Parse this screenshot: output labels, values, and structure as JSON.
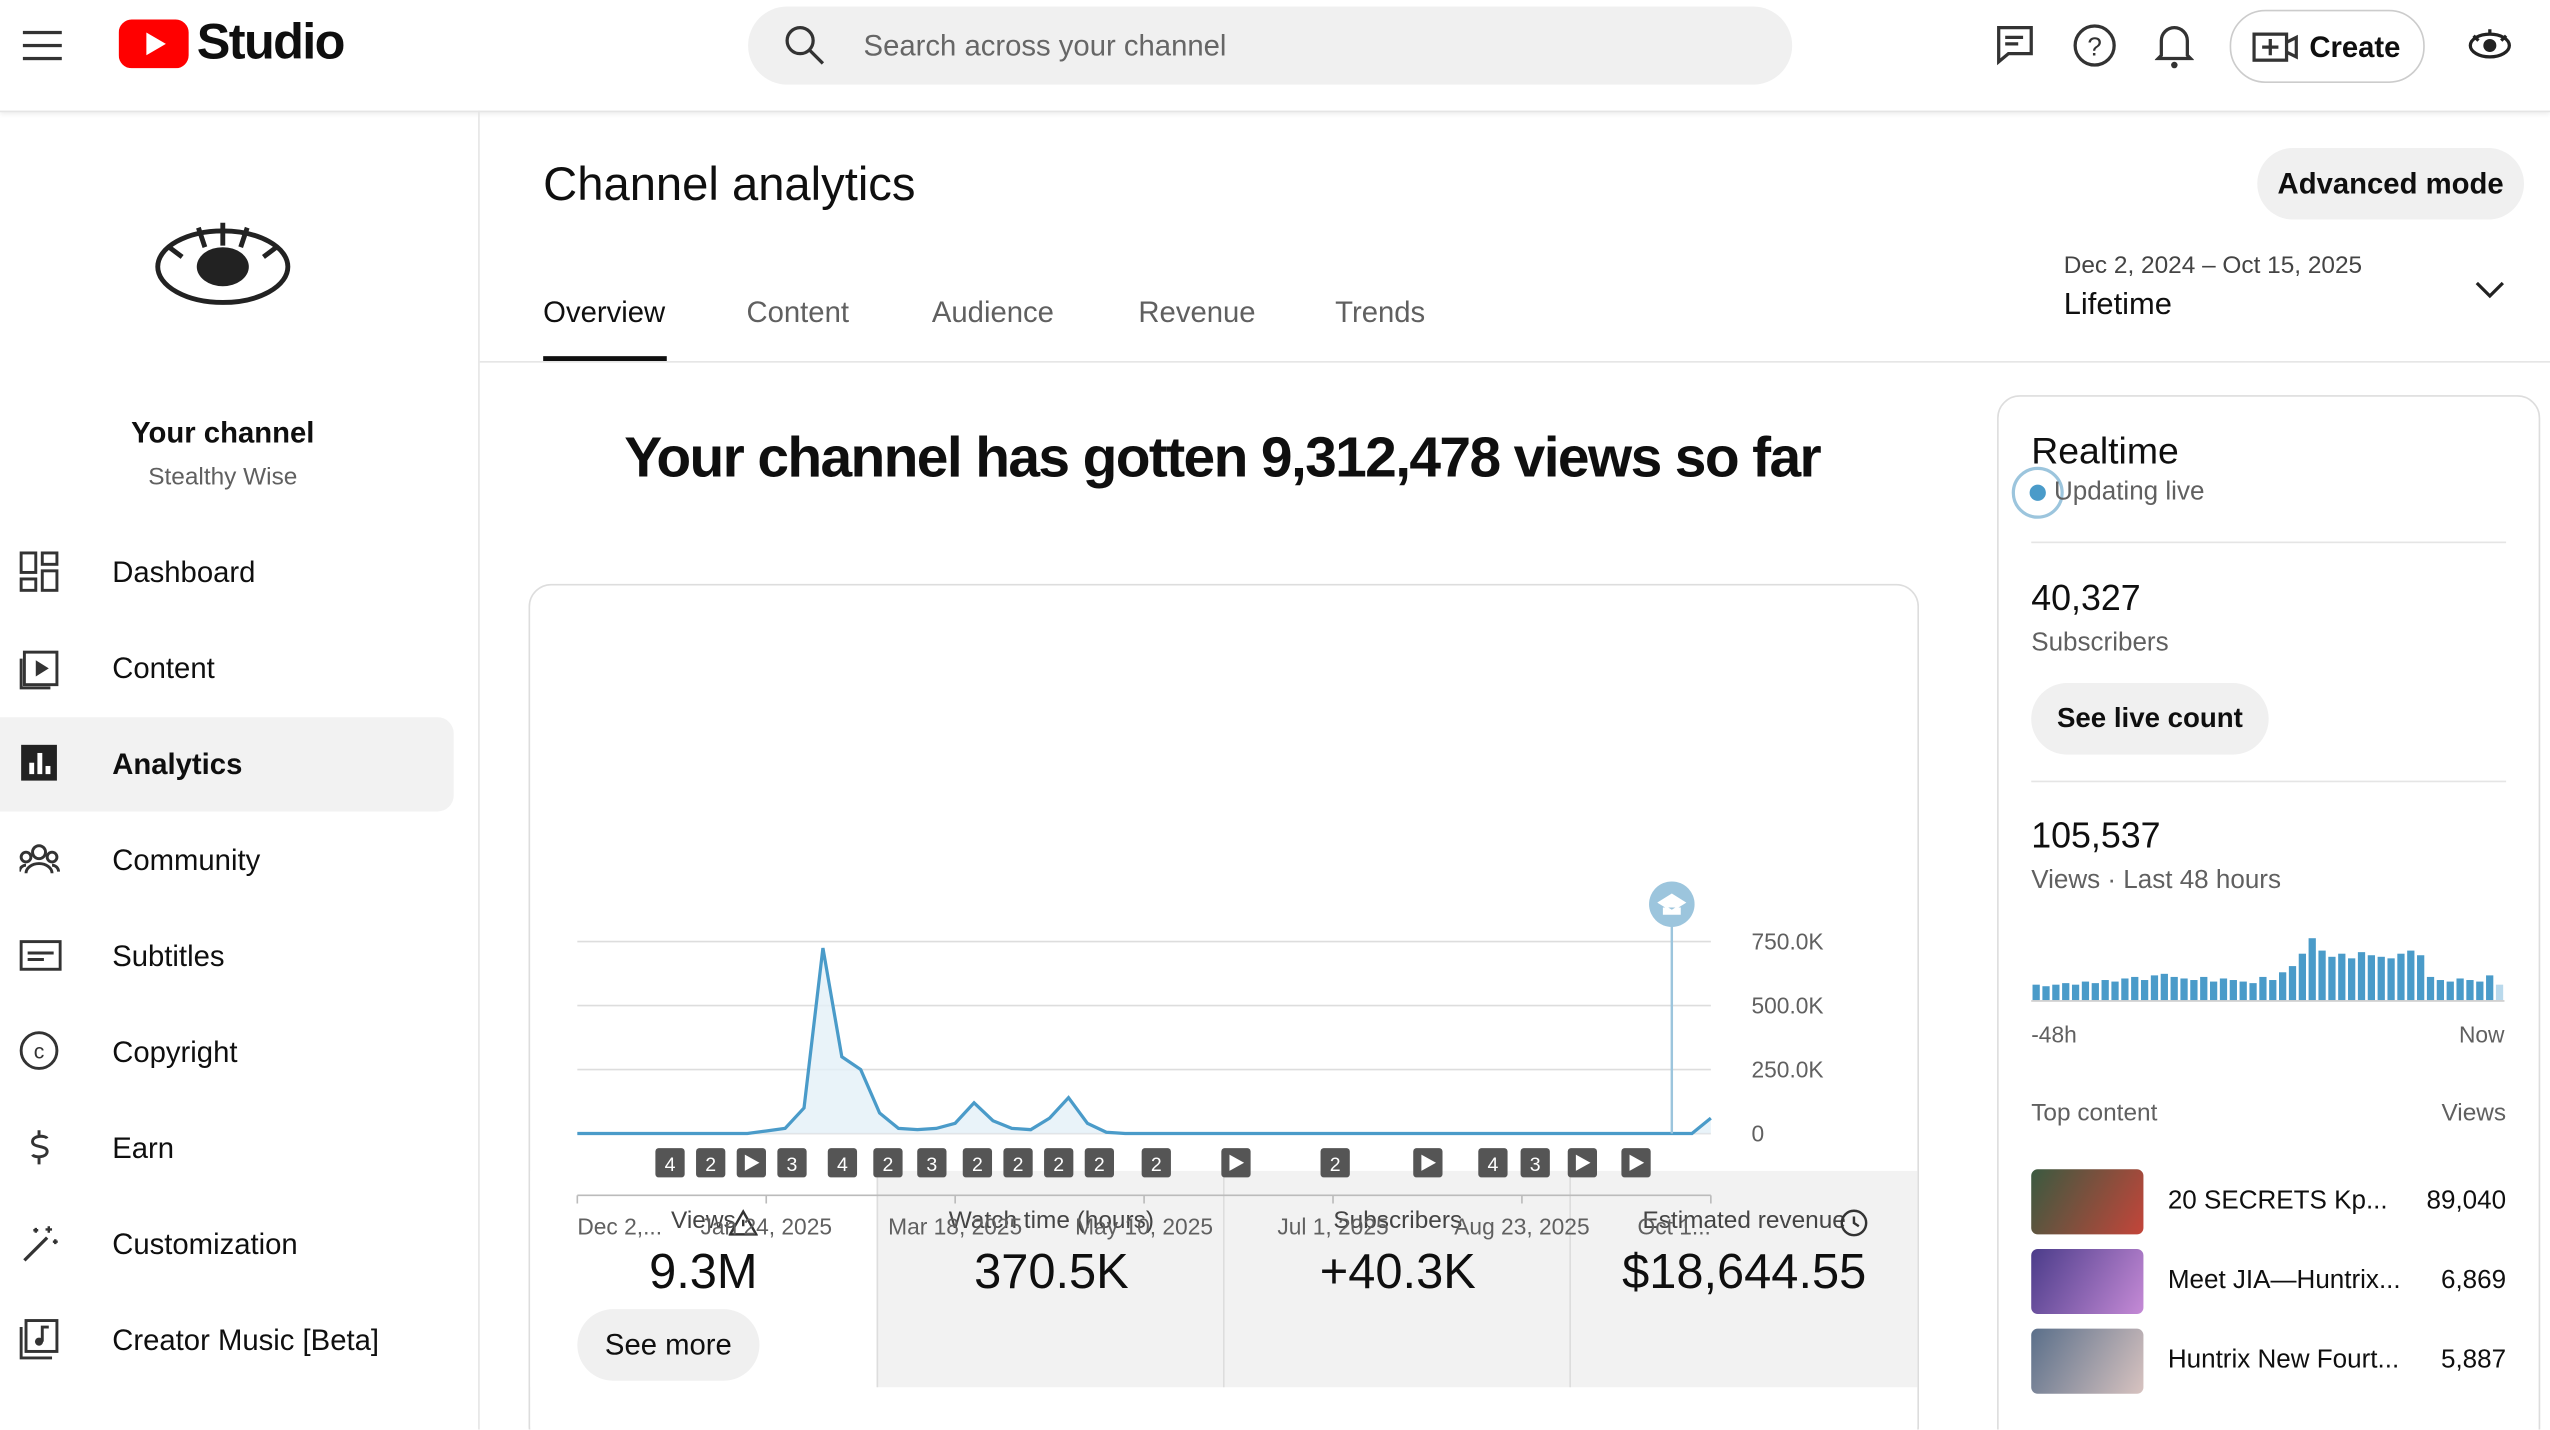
{
  "header": {
    "logo_text": "Studio",
    "search_placeholder": "Search across your channel",
    "create_button": "Create"
  },
  "sidebar": {
    "channel_title": "Your channel",
    "channel_name": "Stealthy Wise",
    "nav": [
      "Dashboard",
      "Content",
      "Analytics",
      "Community",
      "Subtitles",
      "Copyright",
      "Earn",
      "Customization",
      "Creator Music [Beta]"
    ]
  },
  "page": {
    "title": "Channel analytics",
    "advanced_mode": "Advanced mode",
    "tabs": [
      "Overview",
      "Content",
      "Audience",
      "Revenue",
      "Trends"
    ],
    "date_range": "Dec 2, 2024 – Oct 15, 2025",
    "period": "Lifetime",
    "headline": "Your channel has gotten 9,312,478 views so far",
    "see_more": "See more"
  },
  "metrics": [
    {
      "label": "Views",
      "value": "9.3M"
    },
    {
      "label": "Watch time (hours)",
      "value": "370.5K"
    },
    {
      "label": "Subscribers",
      "value": "+40.3K"
    },
    {
      "label": "Estimated revenue",
      "value": "$18,644.55"
    }
  ],
  "realtime": {
    "title": "Realtime",
    "status": "Updating live",
    "subscribers": "40,327",
    "subscribers_label": "Subscribers",
    "see_live_count": "See live count",
    "views": "105,537",
    "views_label": "Views · Last 48 hours",
    "top_content_label": "Top content",
    "views_header": "Views",
    "top_content": [
      {
        "title": "20 SECRETS Kp...",
        "views": "89,040"
      },
      {
        "title": "Meet JIA—Huntrix...",
        "views": "6,869"
      },
      {
        "title": "Huntrix New Fourt...",
        "views": "5,887"
      }
    ]
  },
  "chart_data": [
    {
      "type": "line",
      "color": "#4a9bc9",
      "categories": [
        "Dec 2,...",
        null,
        null,
        null,
        null,
        null,
        null,
        null,
        null,
        null,
        "Jan 24, 2025",
        null,
        null,
        null,
        null,
        null,
        null,
        null,
        null,
        null,
        "Mar 18, 2025",
        null,
        null,
        null,
        null,
        null,
        null,
        null,
        null,
        null,
        "May 10, 2025",
        null,
        null,
        null,
        null,
        null,
        null,
        null,
        null,
        null,
        "Jul 1, 2025",
        null,
        null,
        null,
        null,
        null,
        null,
        null,
        null,
        null,
        "Aug 23, 2025",
        null,
        null,
        null,
        null,
        null,
        null,
        null,
        null,
        null,
        "Oct 1..."
      ],
      "values": [
        0,
        0,
        0,
        0,
        0,
        0,
        0,
        0,
        0,
        0,
        10000,
        20000,
        100000,
        725000,
        300000,
        250000,
        80000,
        20000,
        15000,
        20000,
        40000,
        120000,
        50000,
        20000,
        15000,
        60000,
        140000,
        40000,
        5000,
        0,
        0,
        0,
        0,
        0,
        0,
        0,
        0,
        0,
        0,
        0,
        0,
        0,
        0,
        0,
        0,
        0,
        0,
        0,
        0,
        0,
        0,
        0,
        0,
        0,
        0,
        0,
        0,
        0,
        0,
        0,
        60000
      ],
      "ylim": [
        0,
        750000
      ],
      "yticks": [
        0,
        {
          "value": 250000,
          "label": "250.0K"
        },
        {
          "value": 500000,
          "label": "500.0K"
        },
        {
          "value": 750000,
          "label": "750.0K"
        }
      ],
      "grid": true,
      "annotations": [
        "4",
        "2",
        "3",
        "4",
        "2",
        "3",
        "2",
        "2",
        "2",
        "2",
        "2",
        "2",
        "4",
        "3"
      ]
    },
    {
      "type": "bar",
      "color": "#4a9bc9",
      "categories": [
        "-48h",
        null,
        null,
        null,
        null,
        null,
        null,
        null,
        null,
        null,
        null,
        null,
        null,
        null,
        null,
        null,
        null,
        null,
        null,
        null,
        null,
        null,
        null,
        null,
        null,
        null,
        null,
        null,
        null,
        null,
        null,
        null,
        null,
        null,
        null,
        null,
        null,
        null,
        null,
        null,
        null,
        null,
        null,
        null,
        null,
        null,
        null,
        "Now"
      ],
      "values": [
        1000,
        900,
        1000,
        1100,
        1000,
        1200,
        1100,
        1300,
        1200,
        1400,
        1500,
        1300,
        1600,
        1700,
        1500,
        1400,
        1300,
        1500,
        1200,
        1400,
        1300,
        1200,
        1100,
        1500,
        1300,
        1800,
        2200,
        3000,
        4000,
        3200,
        2800,
        3000,
        2700,
        3100,
        2900,
        2800,
        2700,
        3000,
        3200,
        2900,
        1500,
        1300,
        1200,
        1400,
        1300,
        1200,
        1600,
        1000
      ],
      "ylim": [
        0,
        4200
      ]
    }
  ]
}
